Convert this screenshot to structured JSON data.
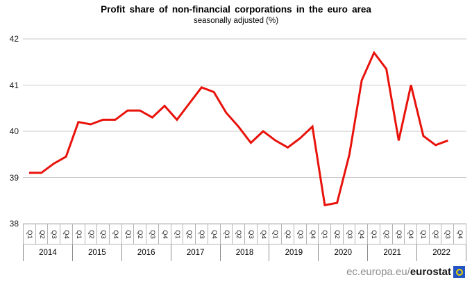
{
  "title": "Profit share of non-financial corporations in the euro area",
  "subtitle": "seasonally adjusted (%)",
  "footer": {
    "url_plain": "ec.europa.eu/",
    "url_bold": "eurostat",
    "logo_icon": "eurostat-logo",
    "logo_bg": "#2353c4",
    "logo_ring": "#e8d600"
  },
  "chart_data": {
    "type": "line",
    "title": "Profit share of non-financial corporations in the euro area",
    "subtitle": "seasonally adjusted (%)",
    "line_color": "#e8120b",
    "gridline_color": "#c9c9c9",
    "grid": true,
    "legend": "none",
    "ylim": [
      38,
      42
    ],
    "yticks": [
      "42",
      "41",
      "40",
      "39",
      "38"
    ],
    "quarter_labels": [
      "Q1",
      "Q2",
      "Q3",
      "Q4"
    ],
    "years": [
      "2014",
      "2015",
      "2016",
      "2017",
      "2018",
      "2019",
      "2020",
      "2021",
      "2022"
    ],
    "x": [
      "2014-Q1",
      "2014-Q2",
      "2014-Q3",
      "2014-Q4",
      "2015-Q1",
      "2015-Q2",
      "2015-Q3",
      "2015-Q4",
      "2016-Q1",
      "2016-Q2",
      "2016-Q3",
      "2016-Q4",
      "2017-Q1",
      "2017-Q2",
      "2017-Q3",
      "2017-Q4",
      "2018-Q1",
      "2018-Q2",
      "2018-Q3",
      "2018-Q4",
      "2019-Q1",
      "2019-Q2",
      "2019-Q3",
      "2019-Q4",
      "2020-Q1",
      "2020-Q2",
      "2020-Q3",
      "2020-Q4",
      "2021-Q1",
      "2021-Q2",
      "2021-Q3",
      "2021-Q4",
      "2022-Q1",
      "2022-Q2",
      "2022-Q3",
      "2022-Q4"
    ],
    "series": [
      {
        "name": "Profit share (%)",
        "values": [
          39.1,
          39.1,
          39.3,
          39.45,
          40.2,
          40.15,
          40.25,
          40.25,
          40.45,
          40.45,
          40.3,
          40.55,
          40.25,
          40.6,
          40.95,
          40.85,
          40.4,
          40.1,
          39.75,
          40.0,
          39.8,
          39.65,
          39.85,
          40.1,
          38.4,
          38.45,
          39.5,
          41.1,
          41.7,
          41.35,
          39.8,
          41.0,
          39.9,
          39.7,
          39.8,
          null
        ]
      }
    ]
  }
}
